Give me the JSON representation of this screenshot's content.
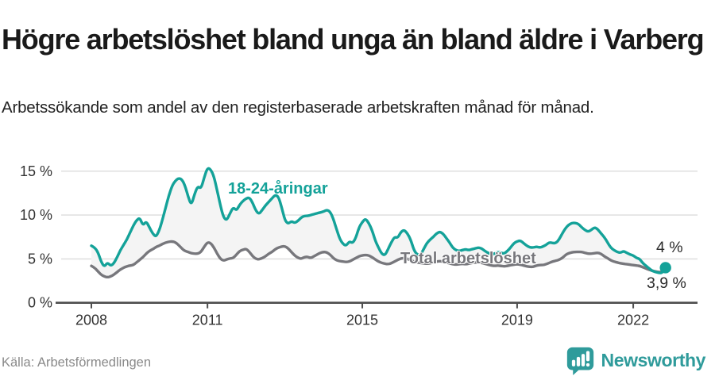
{
  "chart_data": {
    "type": "line",
    "title": "Högre arbetslöshet bland unga än bland äldre i Varberg",
    "subtitle": "Arbetssökande som andel av den registerbaserade arbetskraften månad för månad.",
    "x_unit": "month",
    "x_start": "2008-01",
    "x_end": "2022-11",
    "x_tick_labels": [
      "2008",
      "2011",
      "2015",
      "2019",
      "2022"
    ],
    "y_tick_labels": [
      "0 %",
      "5 %",
      "10 %",
      "15 %"
    ],
    "ylim": [
      0,
      16
    ],
    "grid": "horizontal",
    "legend_position": "inline-labels",
    "area_fill_between_series": "#f4f4f4",
    "series": [
      {
        "name": "18-24-åringar",
        "color": "#14a299",
        "values": [
          6.5,
          6.3,
          5.8,
          4.7,
          4.1,
          4.6,
          4.2,
          4.5,
          5.2,
          6.0,
          6.6,
          7.2,
          8.0,
          8.8,
          9.4,
          9.7,
          8.8,
          9.3,
          8.6,
          7.9,
          7.5,
          8.2,
          9.4,
          10.8,
          12.2,
          13.3,
          13.9,
          14.2,
          14.1,
          13.4,
          12.1,
          11.1,
          12.4,
          13.3,
          13.0,
          14.3,
          15.4,
          15.2,
          14.4,
          12.8,
          11.1,
          9.7,
          9.4,
          10.2,
          10.9,
          10.5,
          11.2,
          11.6,
          11.9,
          12.0,
          11.4,
          10.5,
          10.1,
          10.6,
          11.1,
          11.5,
          11.9,
          12.3,
          12.1,
          10.9,
          9.4,
          9.0,
          9.3,
          9.1,
          9.3,
          9.7,
          9.9,
          9.9,
          10.0,
          10.1,
          10.2,
          10.3,
          10.4,
          10.6,
          10.4,
          9.6,
          8.4,
          7.3,
          6.7,
          6.5,
          7.0,
          6.8,
          7.4,
          8.6,
          9.2,
          9.6,
          9.1,
          8.3,
          7.1,
          6.3,
          5.6,
          5.4,
          6.1,
          6.9,
          7.5,
          7.4,
          8.1,
          8.3,
          7.9,
          7.2,
          6.0,
          5.5,
          5.4,
          6.1,
          6.8,
          7.2,
          7.5,
          7.9,
          8.1,
          7.9,
          7.4,
          6.9,
          6.3,
          6.0,
          5.9,
          6.0,
          6.1,
          6.0,
          6.1,
          6.2,
          6.3,
          6.2,
          5.9,
          5.7,
          5.5,
          5.6,
          5.8,
          5.7,
          5.6,
          5.9,
          6.3,
          6.8,
          7.0,
          7.1,
          6.8,
          6.5,
          6.3,
          6.3,
          6.4,
          6.3,
          6.4,
          6.6,
          6.9,
          6.8,
          6.8,
          7.2,
          7.9,
          8.5,
          8.9,
          9.1,
          9.1,
          9.0,
          8.6,
          8.3,
          8.1,
          8.3,
          8.6,
          8.4,
          7.9,
          7.5,
          6.9,
          6.3,
          6.0,
          5.8,
          5.7,
          5.9,
          5.7,
          5.5,
          5.4,
          5.1,
          5.0,
          4.5,
          4.2,
          3.9,
          3.6,
          3.5,
          3.4,
          3.4,
          4.0
        ]
      },
      {
        "name": "Total arbetslöshet",
        "color": "#77777c",
        "values": [
          4.2,
          4.0,
          3.6,
          3.2,
          3.0,
          2.9,
          3.0,
          3.2,
          3.5,
          3.8,
          4.0,
          4.15,
          4.25,
          4.3,
          4.6,
          4.9,
          5.2,
          5.6,
          5.9,
          6.1,
          6.35,
          6.5,
          6.7,
          6.85,
          6.95,
          7.0,
          6.9,
          6.6,
          6.2,
          5.9,
          5.8,
          5.65,
          5.6,
          5.6,
          5.8,
          6.4,
          6.9,
          6.8,
          6.3,
          5.6,
          5.0,
          4.8,
          4.95,
          5.05,
          5.1,
          5.5,
          5.9,
          6.05,
          6.15,
          5.8,
          5.3,
          5.0,
          4.95,
          5.1,
          5.3,
          5.6,
          5.8,
          6.1,
          6.3,
          6.4,
          6.45,
          6.2,
          5.8,
          5.4,
          5.15,
          5.0,
          5.2,
          5.25,
          5.1,
          5.3,
          5.5,
          5.7,
          5.8,
          5.75,
          5.5,
          5.1,
          4.85,
          4.75,
          4.7,
          4.65,
          4.7,
          4.9,
          5.1,
          5.3,
          5.4,
          5.45,
          5.4,
          5.2,
          4.95,
          4.7,
          4.55,
          4.45,
          4.4,
          4.5,
          4.7,
          4.9,
          5.05,
          5.1,
          5.0,
          4.85,
          4.7,
          4.6,
          4.55,
          4.5,
          4.45,
          4.5,
          4.6,
          4.7,
          4.75,
          4.7,
          4.6,
          4.5,
          4.4,
          4.35,
          4.4,
          4.45,
          4.4,
          4.45,
          4.55,
          4.6,
          4.6,
          4.55,
          4.45,
          4.35,
          4.25,
          4.2,
          4.25,
          4.2,
          4.15,
          4.2,
          4.3,
          4.35,
          4.4,
          4.35,
          4.25,
          4.15,
          4.1,
          4.1,
          4.25,
          4.3,
          4.3,
          4.4,
          4.55,
          4.7,
          4.8,
          4.9,
          5.1,
          5.45,
          5.65,
          5.75,
          5.8,
          5.8,
          5.8,
          5.7,
          5.6,
          5.6,
          5.65,
          5.7,
          5.6,
          5.3,
          5.1,
          4.85,
          4.7,
          4.6,
          4.5,
          4.45,
          4.4,
          4.35,
          4.3,
          4.25,
          4.2,
          4.05,
          3.9,
          3.75,
          3.65,
          3.55,
          3.5,
          3.5,
          3.9
        ]
      }
    ],
    "end_labels": {
      "young": "4 %",
      "total": "3,9 %"
    }
  },
  "footer": {
    "source": "Källa: Arbetsförmedlingen",
    "brand": "Newsworthy"
  },
  "colors": {
    "accent_teal": "#14a299",
    "brand_teal": "#2f9b9b",
    "series_gray": "#77777c"
  }
}
